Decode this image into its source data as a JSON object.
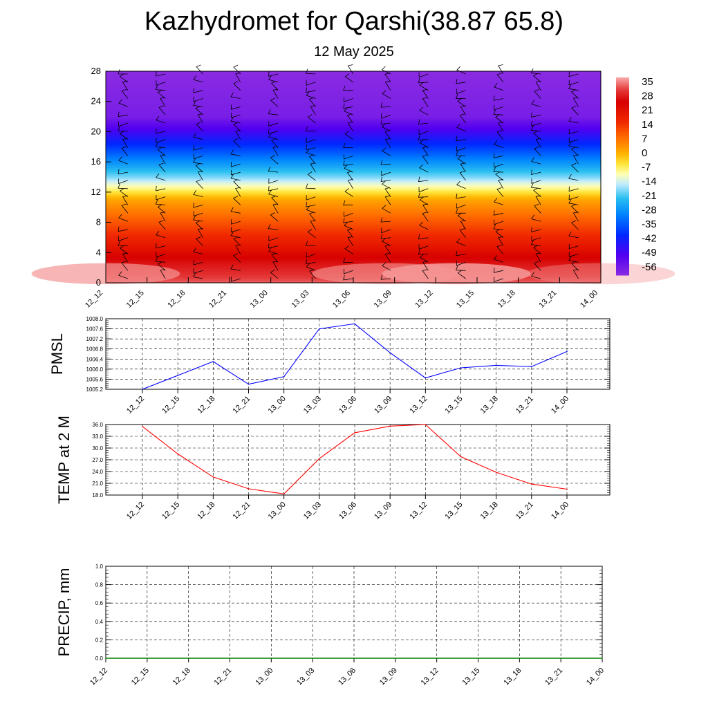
{
  "title": "Kazhydromet for Qarshi(38.87 65.8)",
  "subtitle": "12 May 2025",
  "time_labels": [
    "12_12",
    "12_15",
    "12_18",
    "12_21",
    "13_00",
    "13_03",
    "13_06",
    "13_09",
    "13_12",
    "13_15",
    "13_18",
    "13_21",
    "14_00"
  ],
  "chart_data": [
    {
      "type": "heatmap",
      "name": "temperature-profile",
      "x": [
        "12_12",
        "12_15",
        "12_18",
        "12_21",
        "13_00",
        "13_03",
        "13_06",
        "13_09",
        "13_12",
        "13_15",
        "13_18",
        "13_21",
        "14_00"
      ],
      "y_ticks": [
        0,
        4,
        8,
        12,
        16,
        20,
        24,
        28
      ],
      "ylim": [
        0,
        28
      ],
      "colorbar_labels": [
        "35",
        "28",
        "21",
        "14",
        "7",
        "0",
        "-7",
        "-14",
        "-21",
        "-28",
        "-35",
        "-42",
        "-49",
        "-56"
      ],
      "colorbar_range": [
        -60,
        38
      ],
      "colors": {
        "cold": "#8a2be2",
        "hot": "#d40000"
      },
      "wind_barbs": true
    },
    {
      "type": "line",
      "ylabel": "PMSL",
      "x": [
        "12_12",
        "12_15",
        "12_18",
        "12_21",
        "13_00",
        "13_03",
        "13_06",
        "13_09",
        "13_12",
        "13_15",
        "13_18",
        "13_21",
        "14_00"
      ],
      "values": [
        1005.2,
        1005.75,
        1006.3,
        1005.4,
        1005.7,
        1007.6,
        1007.8,
        1006.65,
        1005.65,
        1006.05,
        1006.15,
        1006.1,
        1006.7
      ],
      "ylim": [
        1005.2,
        1008.0
      ],
      "y_ticks": [
        "1005.2",
        "1005.6",
        "1006.0",
        "1006.4",
        "1006.8",
        "1007.2",
        "1007.6",
        "1008.0"
      ],
      "color": "#0000ff"
    },
    {
      "type": "line",
      "ylabel": "TEMP at 2 M",
      "x": [
        "12_12",
        "12_15",
        "12_18",
        "12_21",
        "13_00",
        "13_03",
        "13_06",
        "13_09",
        "13_12",
        "13_15",
        "13_18",
        "13_21",
        "14_00"
      ],
      "values": [
        35.5,
        28.5,
        22.6,
        19.6,
        18.3,
        27.3,
        33.9,
        35.6,
        36.0,
        27.8,
        23.8,
        20.8,
        19.5
      ],
      "ylim": [
        18.0,
        36.0
      ],
      "y_ticks": [
        "18.0",
        "21.0",
        "24.0",
        "27.0",
        "30.0",
        "33.0",
        "36.0"
      ],
      "color": "#ff0000"
    },
    {
      "type": "line",
      "ylabel": "PRECIP, mm",
      "x": [
        "12_12",
        "12_15",
        "12_18",
        "12_21",
        "13_00",
        "13_03",
        "13_06",
        "13_09",
        "13_12",
        "13_15",
        "13_18",
        "13_21",
        "14_00"
      ],
      "values": [
        0,
        0,
        0,
        0,
        0,
        0,
        0,
        0,
        0,
        0,
        0,
        0,
        0
      ],
      "ylim": [
        0.0,
        1.0
      ],
      "y_ticks": [
        "0.0",
        "0.2",
        "0.4",
        "0.6",
        "0.8",
        "1.0"
      ],
      "color": "#008000"
    }
  ]
}
